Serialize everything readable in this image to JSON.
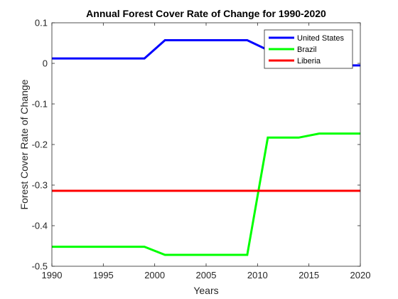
{
  "chart_data": {
    "type": "line",
    "title": "Annual Forest Cover Rate of Change for 1990-2020",
    "xlabel": "Years",
    "ylabel": "Forest Cover Rate of Change",
    "xlim": [
      1990,
      2020
    ],
    "ylim": [
      -0.5,
      0.1
    ],
    "xticks": [
      1990,
      1995,
      2000,
      2005,
      2010,
      2015,
      2020
    ],
    "yticks": [
      0.1,
      0,
      -0.1,
      -0.2,
      -0.3,
      -0.4,
      -0.5
    ],
    "xtick_labels": [
      "1990",
      "1995",
      "2000",
      "2005",
      "2010",
      "2015",
      "2020"
    ],
    "ytick_labels": [
      "0.1",
      "0",
      "-0.1",
      "-0.2",
      "-0.3",
      "-0.4",
      "-0.5"
    ],
    "grid": false,
    "legend_position": "top-right",
    "series": [
      {
        "name": "United States",
        "color": "#0000ff",
        "x": [
          1990,
          1999,
          2001,
          2009,
          2011,
          2014,
          2016,
          2019,
          2020
        ],
        "y": [
          0.012,
          0.012,
          0.057,
          0.057,
          0.033,
          0.033,
          0.012,
          -0.005,
          -0.005
        ]
      },
      {
        "name": "Brazil",
        "color": "#00ff00",
        "x": [
          1990,
          1999,
          2001,
          2009,
          2011,
          2014,
          2016,
          2020
        ],
        "y": [
          -0.452,
          -0.452,
          -0.472,
          -0.472,
          -0.183,
          -0.183,
          -0.173,
          -0.173
        ]
      },
      {
        "name": "Liberia",
        "color": "#ff0000",
        "x": [
          1990,
          2020
        ],
        "y": [
          -0.314,
          -0.314
        ]
      }
    ]
  }
}
